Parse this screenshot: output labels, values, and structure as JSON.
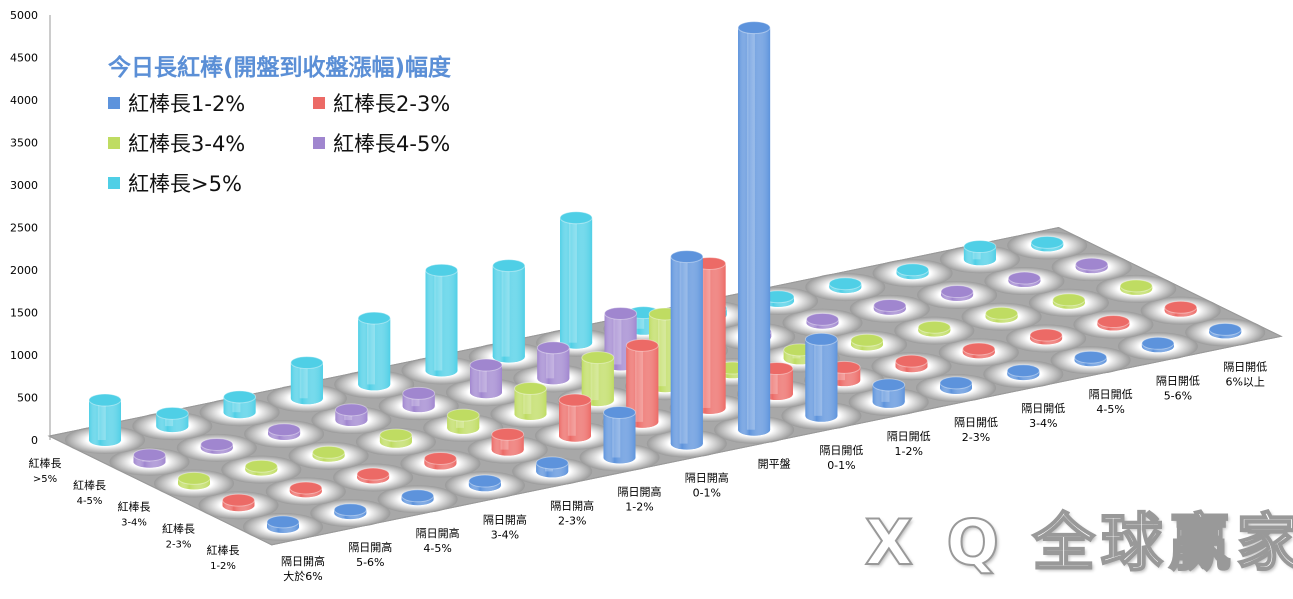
{
  "chart_data": {
    "type": "bar",
    "subtype": "3d-cylinder",
    "title": "今日長紅棒(開盤到收盤漲幅)幅度",
    "categories": [
      "隔日開高\n大於6%",
      "隔日開高\n5-6%",
      "隔日開高\n4-5%",
      "隔日開高\n3-4%",
      "隔日開高\n2-3%",
      "隔日開高\n1-2%",
      "隔日開高\n0-1%",
      "開平盤",
      "隔日開低\n0-1%",
      "隔日開低\n1-2%",
      "隔日開低\n2-3%",
      "隔日開低\n3-4%",
      "隔日開低\n4-5%",
      "隔日開低\n5-6%",
      "隔日開低\n6%以上"
    ],
    "series": [
      {
        "name": "紅棒長1-2%",
        "color": "#5d93dc",
        "values": [
          60,
          40,
          40,
          50,
          100,
          530,
          2200,
          4730,
          900,
          200,
          60,
          40,
          30,
          30,
          20
        ]
      },
      {
        "name": "紅棒長2-3%",
        "color": "#ec6a66",
        "values": [
          60,
          40,
          40,
          60,
          180,
          420,
          900,
          1700,
          300,
          150,
          60,
          40,
          40,
          30,
          40
        ]
      },
      {
        "name": "紅棒長3-4%",
        "color": "#bfdc62",
        "values": [
          60,
          40,
          40,
          80,
          150,
          300,
          500,
          850,
          50,
          100,
          50,
          40,
          40,
          30,
          20
        ]
      },
      {
        "name": "紅棒長4-5%",
        "color": "#a086cf",
        "values": [
          80,
          40,
          50,
          120,
          150,
          320,
          360,
          600,
          80,
          60,
          40,
          40,
          40,
          30,
          20
        ]
      },
      {
        "name": "紅棒長>5%",
        "color": "#4fcfe6",
        "values": [
          470,
          150,
          180,
          420,
          780,
          1180,
          1070,
          1470,
          190,
          80,
          50,
          40,
          40,
          150,
          20
        ]
      }
    ],
    "yticks": [
      "0",
      "500",
      "1000",
      "1500",
      "2000",
      "2500",
      "3000",
      "3500",
      "4000",
      "4500",
      "5000"
    ],
    "ylim": [
      0,
      5000
    ],
    "row_labels": [
      "紅棒長\n1-2%",
      "紅棒長\n2-3%",
      "紅棒長\n3-4%",
      "紅棒長\n4-5%",
      "紅棒長\n>5%"
    ],
    "legend_placement": "top-left"
  },
  "watermark": "X Q 全球贏家"
}
